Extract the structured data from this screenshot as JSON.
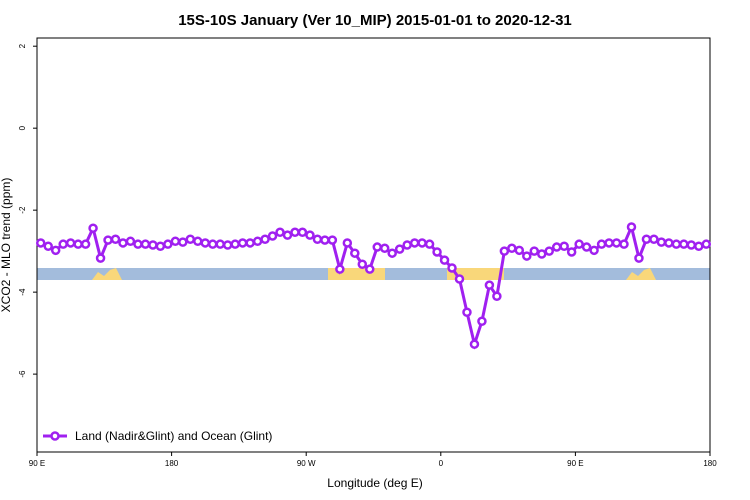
{
  "chart_data": {
    "type": "line",
    "title": "15S-10S January (Ver 10_MIP)   2015-01-01 to 2020-12-31",
    "xlabel": "Longitude (deg E)",
    "ylabel": "XCO2 - MLO trend (ppm)",
    "xlim": [
      90,
      540
    ],
    "ylim": [
      -7.9,
      2.2
    ],
    "xticks": [
      {
        "value": 90,
        "label": "90 E"
      },
      180,
      {
        "value": 270,
        "label": "90 W"
      },
      {
        "value": 360,
        "label": "0"
      },
      {
        "value": 450,
        "label": "90 E"
      },
      {
        "value": 540,
        "label": "180"
      }
    ],
    "yticks": [
      2,
      0,
      -2,
      -4,
      -6
    ],
    "legend": "bottom-left",
    "x": [
      92.5,
      97.5,
      102.5,
      107.5,
      112.5,
      117.5,
      122.5,
      127.5,
      132.5,
      137.5,
      142.5,
      147.5,
      152.5,
      157.5,
      162.5,
      167.5,
      172.5,
      177.5,
      182.5,
      187.5,
      192.5,
      197.5,
      202.5,
      207.5,
      212.5,
      217.5,
      222.5,
      227.5,
      232.5,
      237.5,
      242.5,
      247.5,
      252.5,
      257.5,
      262.5,
      267.5,
      272.5,
      277.5,
      282.5,
      287.5,
      292.5,
      297.5,
      302.5,
      307.5,
      312.5,
      317.5,
      322.5,
      327.5,
      332.5,
      337.5,
      342.5,
      347.5,
      352.5,
      357.5,
      362.5,
      367.5,
      372.5,
      377.5,
      382.5,
      387.5,
      392.5,
      397.5,
      402.5,
      407.5,
      412.5,
      417.5,
      422.5,
      427.5,
      432.5,
      437.5,
      442.5,
      447.5,
      452.5,
      457.5,
      462.5,
      467.5,
      472.5,
      477.5,
      482.5,
      487.5,
      492.5,
      497.5,
      502.5,
      507.5,
      512.5,
      517.5,
      522.5,
      527.5,
      532.5,
      537.5
    ],
    "series": [
      {
        "name": "Land (Nadir&Glint) and Ocean (Glint)",
        "color": "#a020f0",
        "values": [
          -2.8,
          -2.88,
          -2.98,
          -2.83,
          -2.8,
          -2.83,
          -2.83,
          -2.44,
          -3.17,
          -2.73,
          -2.71,
          -2.8,
          -2.76,
          -2.83,
          -2.83,
          -2.85,
          -2.88,
          -2.83,
          -2.76,
          -2.78,
          -2.71,
          -2.76,
          -2.8,
          -2.83,
          -2.83,
          -2.85,
          -2.83,
          -2.8,
          -2.8,
          -2.76,
          -2.71,
          -2.63,
          -2.54,
          -2.61,
          -2.54,
          -2.54,
          -2.61,
          -2.71,
          -2.73,
          -2.73,
          -3.44,
          -2.8,
          -3.05,
          -3.32,
          -3.44,
          -2.9,
          -2.93,
          -3.05,
          -2.95,
          -2.85,
          -2.8,
          -2.8,
          -2.83,
          -3.02,
          -3.22,
          -3.41,
          -3.68,
          -4.49,
          -5.27,
          -4.71,
          -3.83,
          -4.1,
          -3.0,
          -2.93,
          -2.98,
          -3.12,
          -3.0,
          -3.07,
          -3.0,
          -2.9,
          -2.88,
          -3.02,
          -2.83,
          -2.9,
          -2.98,
          -2.83,
          -2.8,
          -2.8,
          -2.83,
          -2.41,
          -3.17,
          -2.71,
          -2.71,
          -2.78,
          -2.8,
          -2.83,
          -2.83,
          -2.85,
          -2.88,
          -2.83
        ]
      }
    ]
  }
}
